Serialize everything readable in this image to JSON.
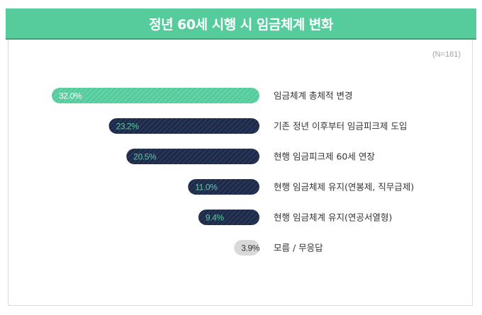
{
  "title": "정년 60세 시행 시 임금체계 변화",
  "note": "(N=181)",
  "colors": {
    "header": "#56cc9d",
    "highlight_bar": "#56cc9d",
    "dark_bar": "#1d2a4a",
    "light_bar": "#d9d9d9",
    "value_on_dark": "#56cc9d",
    "value_on_highlight": "#ffffff",
    "value_on_light": "#333333"
  },
  "chart_data": {
    "type": "bar",
    "orientation": "horizontal",
    "categories": [
      "임금체계 총체적 변경",
      "기존 정년 이후부터 임금피크제 도입",
      "현행 임금피크제 60세 연장",
      "현행 임금체제 유지(연봉제, 직무급제)",
      "현행 임금체계 유지(연공서열형)",
      "모름 / 무응답"
    ],
    "values": [
      32.0,
      23.2,
      20.5,
      11.0,
      9.4,
      3.9
    ],
    "value_labels": [
      "32.0%",
      "23.2%",
      "20.5%",
      "11.0%",
      "9.4%",
      "3.9%"
    ],
    "styles": [
      "highlight",
      "dark",
      "dark",
      "dark",
      "dark",
      "light"
    ],
    "grid": false
  }
}
